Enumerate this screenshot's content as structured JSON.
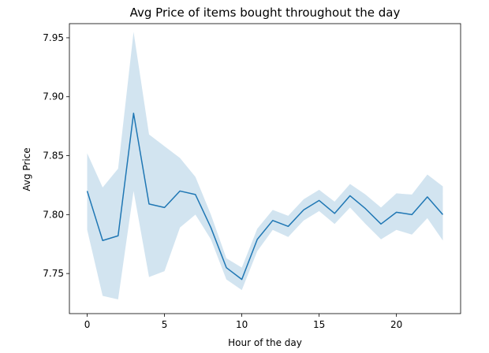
{
  "chart_data": {
    "type": "line",
    "title": "Avg Price of items bought throughout the day",
    "xlabel": "Hour of the day",
    "ylabel": "Avg Price",
    "xlim": [
      -1.15,
      24.15
    ],
    "ylim": [
      7.716,
      7.962
    ],
    "xticks": [
      0,
      5,
      10,
      15,
      20
    ],
    "xtick_labels": [
      "0",
      "5",
      "10",
      "15",
      "20"
    ],
    "yticks": [
      7.75,
      7.8,
      7.85,
      7.9,
      7.95
    ],
    "ytick_labels": [
      "7.75",
      "7.80",
      "7.85",
      "7.90",
      "7.95"
    ],
    "grid": false,
    "line_color": "#1f77b4",
    "band_color": "#1f77b4",
    "x": [
      0,
      1,
      2,
      3,
      4,
      5,
      6,
      7,
      8,
      9,
      10,
      11,
      12,
      13,
      14,
      15,
      16,
      17,
      18,
      19,
      20,
      21,
      22,
      23
    ],
    "y": [
      7.82,
      7.778,
      7.782,
      7.886,
      7.809,
      7.806,
      7.82,
      7.817,
      7.789,
      7.755,
      7.745,
      7.779,
      7.795,
      7.79,
      7.804,
      7.812,
      7.801,
      7.816,
      7.805,
      7.792,
      7.802,
      7.8,
      7.815,
      7.8
    ],
    "ci_upper": [
      7.852,
      7.823,
      7.839,
      7.955,
      7.868,
      7.858,
      7.848,
      7.832,
      7.8,
      7.763,
      7.755,
      7.788,
      7.804,
      7.799,
      7.813,
      7.821,
      7.811,
      7.826,
      7.817,
      7.806,
      7.818,
      7.817,
      7.834,
      7.824
    ],
    "ci_lower": [
      7.787,
      7.731,
      7.728,
      7.82,
      7.747,
      7.752,
      7.789,
      7.8,
      7.779,
      7.745,
      7.736,
      7.769,
      7.787,
      7.781,
      7.795,
      7.803,
      7.792,
      7.806,
      7.792,
      7.779,
      7.787,
      7.783,
      7.797,
      7.778
    ]
  }
}
